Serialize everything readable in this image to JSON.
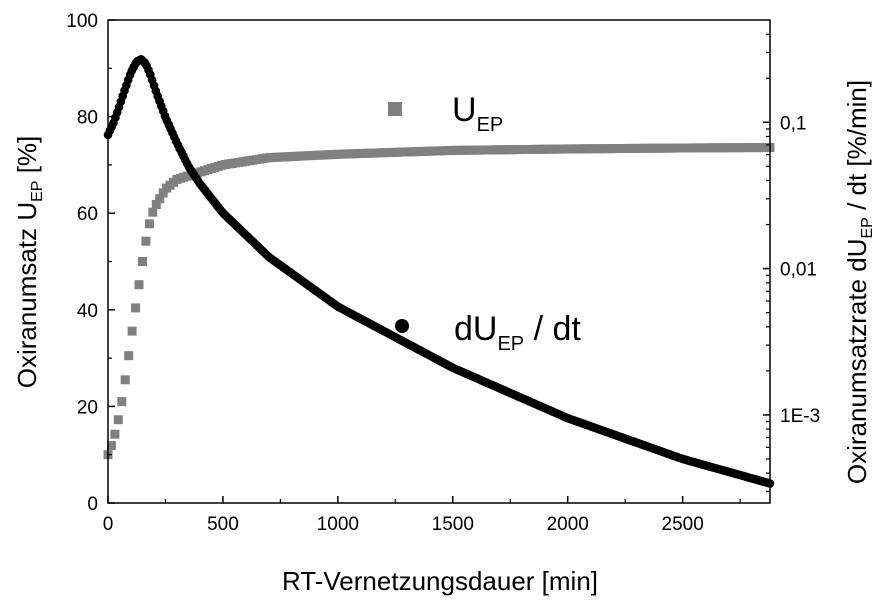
{
  "chart_data": {
    "type": "scatter",
    "xlabel": "RT-Vernetzungsdauer [min]",
    "xlim": [
      0,
      2880
    ],
    "x_ticks": [
      "0",
      "500",
      "1000",
      "1500",
      "2000",
      "2500"
    ],
    "y_left": {
      "label_main": "Oxiranumsatz U",
      "label_sub": "EP",
      "label_tail": " [%]",
      "lim": [
        0,
        100
      ],
      "ticks": [
        "0",
        "20",
        "40",
        "60",
        "80",
        "100"
      ]
    },
    "y_right": {
      "label_main": "Oxiranumsatzrate dU",
      "label_sub": "EP",
      "label_tail": " / dt [%/min]",
      "scale": "log",
      "lim": [
        0.00025,
        0.5
      ],
      "ticks": [
        "1E-3",
        "0,01",
        "0,1"
      ]
    },
    "legend": {
      "placement": "inside"
    },
    "series": [
      {
        "name_main": "U",
        "name_sub": "EP",
        "name_tail": "",
        "axis": "left",
        "marker": "square",
        "color": "#808080",
        "x": [
          0,
          20,
          40,
          60,
          80,
          100,
          125,
          150,
          175,
          200,
          250,
          300,
          400,
          500,
          700,
          1000,
          1500,
          2000,
          2500,
          2880
        ],
        "y": [
          10,
          12.5,
          16,
          21,
          27,
          34,
          42,
          50,
          57,
          61,
          65,
          67,
          68.5,
          70,
          71.5,
          72.2,
          73,
          73.3,
          73.5,
          73.6
        ]
      },
      {
        "name_main": "dU",
        "name_sub": "EP",
        "name_tail": " / dt",
        "axis": "right",
        "marker": "circle",
        "color": "#000000",
        "x": [
          0,
          25,
          50,
          75,
          100,
          125,
          145,
          165,
          185,
          210,
          250,
          300,
          350,
          400,
          500,
          700,
          1000,
          1500,
          2000,
          2500,
          2880
        ],
        "y": [
          0.082,
          0.1,
          0.13,
          0.17,
          0.22,
          0.26,
          0.27,
          0.25,
          0.21,
          0.16,
          0.108,
          0.072,
          0.05,
          0.038,
          0.024,
          0.012,
          0.0055,
          0.0021,
          0.00095,
          0.0005,
          0.00034
        ]
      }
    ]
  }
}
